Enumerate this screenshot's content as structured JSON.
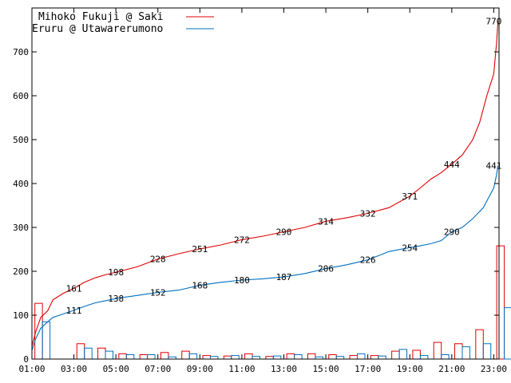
{
  "chart_data": {
    "type": "line",
    "title": "",
    "xlabel": "",
    "ylabel": "",
    "xlim": [
      "01:00",
      "23:15"
    ],
    "ylim": [
      0,
      800
    ],
    "grid": false,
    "legend_position": "top-left",
    "x_ticks": [
      "01:00",
      "03:00",
      "05:00",
      "07:00",
      "09:00",
      "11:00",
      "13:00",
      "15:00",
      "17:00",
      "19:00",
      "21:00",
      "23:00"
    ],
    "y_ticks": [
      0,
      100,
      200,
      300,
      400,
      500,
      600,
      700
    ],
    "colors": {
      "red": "#e00000",
      "blue": "#0070c0"
    },
    "series": [
      {
        "name": "Mihoko Fukuji @ Saki",
        "color": "#e00000",
        "points": [
          [
            "01:00",
            30
          ],
          [
            "01:10",
            60
          ],
          [
            "01:25",
            95
          ],
          [
            "01:45",
            110
          ],
          [
            "02:00",
            135
          ],
          [
            "02:30",
            150
          ],
          [
            "03:00",
            161
          ],
          [
            "03:30",
            175
          ],
          [
            "04:00",
            185
          ],
          [
            "04:30",
            192
          ],
          [
            "05:00",
            198
          ],
          [
            "06:00",
            210
          ],
          [
            "07:00",
            228
          ],
          [
            "08:00",
            240
          ],
          [
            "09:00",
            251
          ],
          [
            "10:00",
            260
          ],
          [
            "11:00",
            272
          ],
          [
            "12:00",
            280
          ],
          [
            "13:00",
            290
          ],
          [
            "14:00",
            300
          ],
          [
            "15:00",
            314
          ],
          [
            "16:00",
            322
          ],
          [
            "17:00",
            332
          ],
          [
            "18:00",
            345
          ],
          [
            "19:00",
            371
          ],
          [
            "19:30",
            390
          ],
          [
            "20:00",
            410
          ],
          [
            "20:30",
            425
          ],
          [
            "21:00",
            444
          ],
          [
            "21:30",
            465
          ],
          [
            "22:00",
            500
          ],
          [
            "22:20",
            540
          ],
          [
            "22:40",
            600
          ],
          [
            "23:00",
            650
          ],
          [
            "23:08",
            720
          ],
          [
            "23:12",
            770
          ]
        ],
        "labels": [
          [
            "03:00",
            161
          ],
          [
            "05:00",
            198
          ],
          [
            "07:00",
            228
          ],
          [
            "09:00",
            251
          ],
          [
            "11:00",
            272
          ],
          [
            "13:00",
            290
          ],
          [
            "15:00",
            314
          ],
          [
            "17:00",
            332
          ],
          [
            "19:00",
            371
          ],
          [
            "21:00",
            444
          ],
          [
            "23:00",
            770
          ]
        ]
      },
      {
        "name": "Eruru @ Utawarerumono",
        "color": "#0070c0",
        "points": [
          [
            "01:00",
            20
          ],
          [
            "01:10",
            45
          ],
          [
            "01:25",
            70
          ],
          [
            "01:45",
            85
          ],
          [
            "02:00",
            95
          ],
          [
            "02:30",
            103
          ],
          [
            "03:00",
            111
          ],
          [
            "03:30",
            120
          ],
          [
            "04:00",
            128
          ],
          [
            "04:30",
            133
          ],
          [
            "05:00",
            138
          ],
          [
            "06:00",
            145
          ],
          [
            "07:00",
            152
          ],
          [
            "08:00",
            157
          ],
          [
            "09:00",
            168
          ],
          [
            "10:00",
            175
          ],
          [
            "11:00",
            180
          ],
          [
            "12:00",
            183
          ],
          [
            "13:00",
            187
          ],
          [
            "14:00",
            195
          ],
          [
            "15:00",
            206
          ],
          [
            "16:00",
            215
          ],
          [
            "17:00",
            226
          ],
          [
            "18:00",
            245
          ],
          [
            "19:00",
            254
          ],
          [
            "19:30",
            258
          ],
          [
            "20:00",
            263
          ],
          [
            "20:30",
            270
          ],
          [
            "21:00",
            290
          ],
          [
            "21:30",
            300
          ],
          [
            "22:00",
            320
          ],
          [
            "22:30",
            345
          ],
          [
            "23:00",
            390
          ],
          [
            "23:08",
            420
          ],
          [
            "23:12",
            441
          ]
        ],
        "labels": [
          [
            "03:00",
            111
          ],
          [
            "05:00",
            138
          ],
          [
            "07:00",
            152
          ],
          [
            "09:00",
            168
          ],
          [
            "11:00",
            180
          ],
          [
            "13:00",
            187
          ],
          [
            "15:00",
            206
          ],
          [
            "17:00",
            226
          ],
          [
            "19:00",
            254
          ],
          [
            "21:00",
            290
          ],
          [
            "23:00",
            441
          ]
        ]
      }
    ],
    "bars": {
      "periods": [
        "01:00",
        "02:00",
        "03:00",
        "04:00",
        "05:00",
        "06:00",
        "07:00",
        "08:00",
        "09:00",
        "10:00",
        "11:00",
        "12:00",
        "13:00",
        "14:00",
        "15:00",
        "16:00",
        "17:00",
        "18:00",
        "19:00",
        "20:00",
        "21:00",
        "22:00",
        "23:00"
      ],
      "Mihoko Fukuji @ Saki": [
        127,
        0,
        35,
        25,
        12,
        10,
        15,
        18,
        8,
        7,
        12,
        6,
        12,
        12,
        10,
        8,
        8,
        18,
        20,
        38,
        35,
        67,
        258
      ],
      "Eruru @ Utawarerumono": [
        85,
        0,
        25,
        18,
        10,
        10,
        5,
        12,
        6,
        8,
        6,
        7,
        10,
        5,
        6,
        12,
        7,
        22,
        8,
        10,
        28,
        35,
        117
      ]
    }
  }
}
